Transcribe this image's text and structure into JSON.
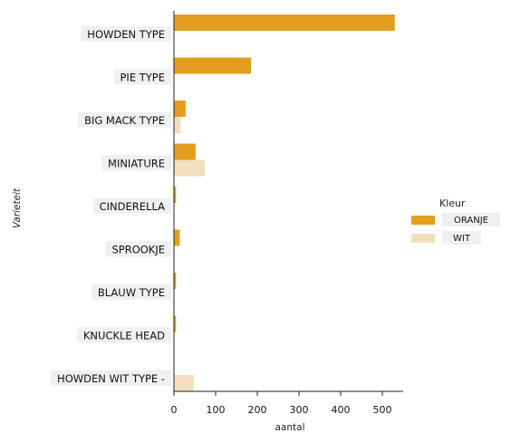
{
  "chart_data": {
    "type": "bar",
    "orientation": "horizontal",
    "categories": [
      "HOWDEN TYPE",
      "PIE TYPE",
      "BIG MACK TYPE",
      "MINIATURE",
      "CINDERELLA",
      "SPROOKJE",
      "BLAUW TYPE",
      "KNUCKLE HEAD",
      "HOWDEN WIT TYPE -"
    ],
    "series": [
      {
        "name": "ORANJE",
        "color": "#e39e21",
        "values": [
          530,
          185,
          28,
          52,
          5,
          14,
          5,
          5,
          0
        ]
      },
      {
        "name": "WIT",
        "color": "#f3dfbf",
        "values": [
          0,
          0,
          16,
          74,
          0,
          0,
          0,
          0,
          48
        ]
      }
    ],
    "xlabel": "aantal",
    "ylabel": "Varieteit",
    "xlim": [
      0,
      550
    ],
    "xticks": [
      0,
      100,
      200,
      300,
      400,
      500
    ],
    "legend": {
      "title": "Kleur",
      "position": "right"
    },
    "grid": false
  }
}
